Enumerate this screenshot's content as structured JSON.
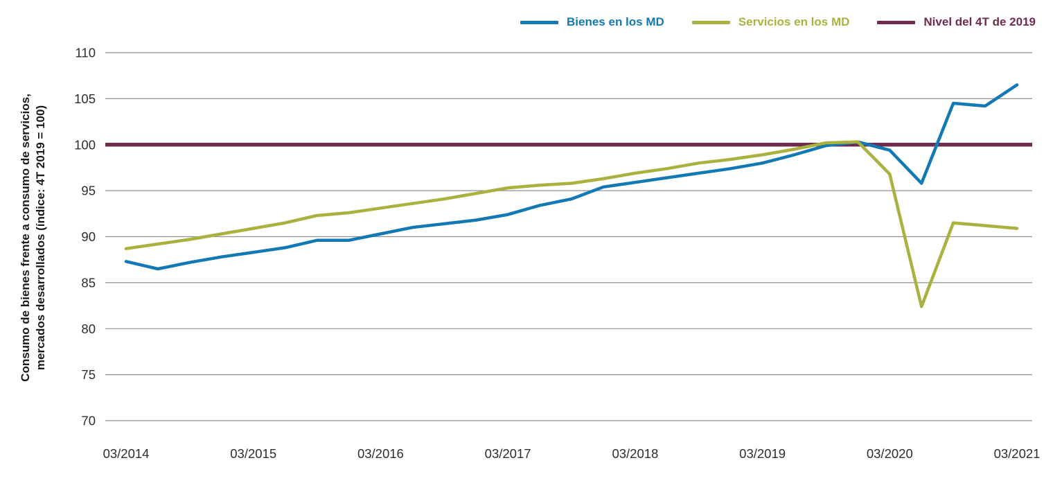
{
  "colors": {
    "goods_line": "#1279b5",
    "services_line": "#a9b23f",
    "reference_line": "#6f2b4d",
    "gridline": "#8f8f8f",
    "tick_text": "#2e2e2e",
    "axis_title_text": "#1a1a1a",
    "background": "#ffffff"
  },
  "legend": {
    "items": [
      {
        "key": "bienes",
        "label": "Bienes en los MD",
        "color": "#1279b5"
      },
      {
        "key": "servicios",
        "label": "Servicios en los MD",
        "color": "#a9b23f"
      },
      {
        "key": "nivel",
        "label": "Nivel del 4T de 2019",
        "color": "#6f2b4d"
      }
    ]
  },
  "y_axis": {
    "title_line1": "Consumo de bienes frente a consumo de servicios,",
    "title_line2": "mercados desarrollados (índice: 4T 2019 = 100)"
  },
  "chart_data": {
    "type": "line",
    "title": "",
    "xlabel": "",
    "ylabel": "Consumo de bienes frente a consumo de servicios, mercados desarrollados (índice: 4T 2019 = 100)",
    "grid": true,
    "legend_position": "top-right",
    "ylim": [
      70,
      110
    ],
    "y_ticks": [
      70,
      75,
      80,
      85,
      90,
      95,
      100,
      105,
      110
    ],
    "x": [
      "03/2014",
      "06/2014",
      "09/2014",
      "12/2014",
      "03/2015",
      "06/2015",
      "09/2015",
      "12/2015",
      "03/2016",
      "06/2016",
      "09/2016",
      "12/2016",
      "03/2017",
      "06/2017",
      "09/2017",
      "12/2017",
      "03/2018",
      "06/2018",
      "09/2018",
      "12/2018",
      "03/2019",
      "06/2019",
      "09/2019",
      "12/2019",
      "03/2020",
      "06/2020",
      "09/2020",
      "12/2020",
      "03/2021"
    ],
    "x_tick_labels": [
      "03/2014",
      "03/2015",
      "03/2016",
      "03/2017",
      "03/2018",
      "03/2019",
      "03/2020",
      "03/2021"
    ],
    "series": [
      {
        "name": "Bienes en los MD",
        "color": "#1279b5",
        "values": [
          87.3,
          86.5,
          87.2,
          87.8,
          88.3,
          88.8,
          89.6,
          89.6,
          90.3,
          91.0,
          91.4,
          91.8,
          92.4,
          93.4,
          94.1,
          95.4,
          95.9,
          96.4,
          96.9,
          97.4,
          98.0,
          98.9,
          99.9,
          100.3,
          99.4,
          95.8,
          104.5,
          104.2,
          106.5
        ]
      },
      {
        "name": "Servicios en los MD",
        "color": "#a9b23f",
        "values": [
          88.7,
          89.2,
          89.7,
          90.3,
          90.9,
          91.5,
          92.3,
          92.6,
          93.1,
          93.6,
          94.1,
          94.7,
          95.3,
          95.6,
          95.8,
          96.3,
          96.9,
          97.4,
          98.0,
          98.4,
          98.9,
          99.5,
          100.2,
          100.3,
          96.8,
          82.4,
          91.5,
          91.2,
          90.9
        ]
      }
    ],
    "reference_line": {
      "name": "Nivel del 4T de 2019",
      "value": 100,
      "color": "#6f2b4d"
    }
  }
}
